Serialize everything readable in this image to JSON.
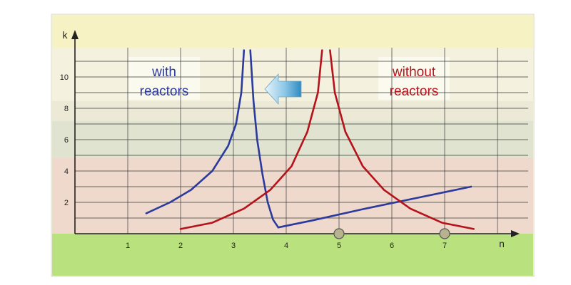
{
  "chart_data": {
    "type": "line",
    "xlabel": "n",
    "ylabel": "k",
    "xlim": [
      0,
      8
    ],
    "ylim": [
      0,
      12
    ],
    "x_ticks": [
      "1",
      "2",
      "3",
      "4",
      "5",
      "6",
      "7"
    ],
    "y_ticks": [
      "2",
      "4",
      "6",
      "8",
      "10"
    ],
    "grid": true,
    "annotations": {
      "with_label": [
        "with",
        "reactors"
      ],
      "without_label": [
        "without",
        "reactors"
      ],
      "shift_arrow": "left-arrow-icon"
    },
    "markers": [
      {
        "x": 5,
        "y": 0
      },
      {
        "x": 7,
        "y": 0
      }
    ],
    "series": [
      {
        "color": "#2b3a9c",
        "segments": [
          [
            [
              1.35,
              1.3
            ],
            [
              1.8,
              2.0
            ],
            [
              2.2,
              2.8
            ],
            [
              2.6,
              4.0
            ],
            [
              2.9,
              5.6
            ],
            [
              3.05,
              7.0
            ],
            [
              3.15,
              9.0
            ],
            [
              3.2,
              11.7
            ]
          ],
          [
            [
              3.32,
              11.7
            ],
            [
              3.38,
              8.5
            ],
            [
              3.45,
              6.0
            ],
            [
              3.55,
              3.8
            ],
            [
              3.65,
              2.0
            ],
            [
              3.75,
              0.9
            ],
            [
              3.85,
              0.4
            ]
          ],
          [
            [
              3.85,
              0.4
            ],
            [
              4.5,
              0.85
            ],
            [
              5.5,
              1.6
            ],
            [
              6.5,
              2.3
            ],
            [
              7.5,
              3.0
            ]
          ]
        ]
      },
      {
        "color": "#b5121b",
        "segments": [
          [
            [
              2.0,
              0.3
            ],
            [
              2.6,
              0.7
            ],
            [
              3.2,
              1.6
            ],
            [
              3.7,
              2.8
            ],
            [
              4.1,
              4.3
            ],
            [
              4.4,
              6.5
            ],
            [
              4.6,
              9.0
            ],
            [
              4.68,
              11.7
            ]
          ],
          [
            [
              4.83,
              11.7
            ],
            [
              4.92,
              9.0
            ],
            [
              5.12,
              6.5
            ],
            [
              5.45,
              4.3
            ],
            [
              5.85,
              2.8
            ],
            [
              6.35,
              1.6
            ],
            [
              6.95,
              0.7
            ],
            [
              7.55,
              0.3
            ]
          ]
        ]
      }
    ]
  },
  "colors": {
    "frame": "#d8d6c0",
    "band_top": "#f6f2c4",
    "band_upper": "#ecead8",
    "band_mid": "#dfe3d0",
    "band_lower": "#eed8cc",
    "ground": "#b9e27f",
    "blue": "#2b3a9c",
    "red": "#b5121b",
    "marker": "#b7b38e"
  }
}
